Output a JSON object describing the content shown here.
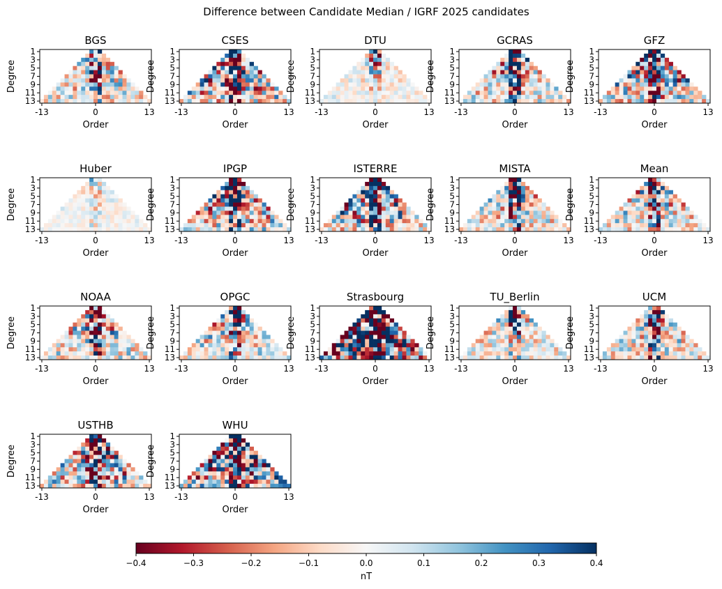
{
  "figure_title": "Difference between Candidate Median / IGRF 2025 candidates",
  "chart_data": {
    "type": "heatmap",
    "title": "Difference between Candidate Median / IGRF 2025 candidates",
    "xlabel": "Order",
    "ylabel": "Degree",
    "x_range": [
      -13,
      13
    ],
    "y_range": [
      1,
      13
    ],
    "x_ticks": [
      "-13",
      "0",
      "13"
    ],
    "y_ticks": [
      "1",
      "3",
      "5",
      "7",
      "9",
      "11",
      "13"
    ],
    "colorbar": {
      "label": "nT",
      "range": [
        -0.4,
        0.4
      ],
      "ticks": [
        "−0.4",
        "−0.3",
        "−0.2",
        "−0.1",
        "0.0",
        "0.1",
        "0.2",
        "0.3",
        "0.4"
      ],
      "colormap": "RdBu",
      "stops": [
        "#67001f",
        "#b2182b",
        "#d6604d",
        "#f4a582",
        "#fddbc7",
        "#f7f7f7",
        "#d1e5f0",
        "#92c5de",
        "#4393c3",
        "#2166ac",
        "#053061"
      ]
    },
    "panels": [
      {
        "name": "BGS",
        "amplitude": 0.3
      },
      {
        "name": "CSES",
        "amplitude": 0.45
      },
      {
        "name": "DTU",
        "amplitude": 0.15
      },
      {
        "name": "GCRAS",
        "amplitude": 0.35
      },
      {
        "name": "GFZ",
        "amplitude": 0.5
      },
      {
        "name": "Huber",
        "amplitude": 0.1
      },
      {
        "name": "IPGP",
        "amplitude": 0.4
      },
      {
        "name": "ISTERRE",
        "amplitude": 0.45
      },
      {
        "name": "MISTA",
        "amplitude": 0.3
      },
      {
        "name": "Mean",
        "amplitude": 0.3
      },
      {
        "name": "NOAA",
        "amplitude": 0.35
      },
      {
        "name": "OPGC",
        "amplitude": 0.3
      },
      {
        "name": "Strasbourg",
        "amplitude": 0.9
      },
      {
        "name": "TU_Berlin",
        "amplitude": 0.25
      },
      {
        "name": "UCM",
        "amplitude": 0.3
      },
      {
        "name": "USTHB",
        "amplitude": 0.5
      },
      {
        "name": "WHU",
        "amplitude": 0.6
      }
    ]
  }
}
